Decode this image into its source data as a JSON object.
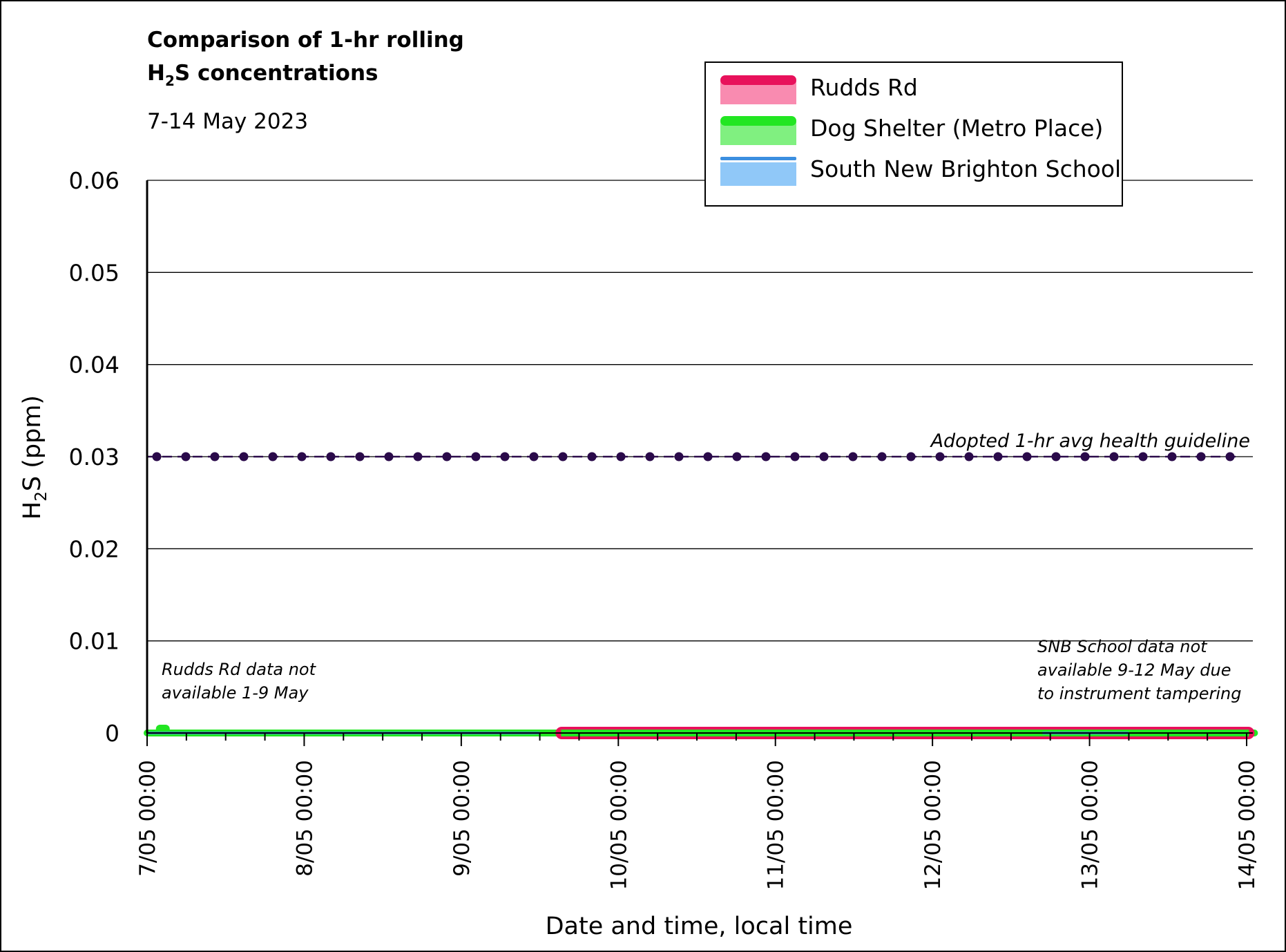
{
  "chart_data": {
    "type": "line",
    "title_line1": "Comparison of 1-hr rolling",
    "title_line2_main": "H",
    "title_line2_sub": "2",
    "title_line2_rest": "S concentrations",
    "subtitle": "7-14 May 2023",
    "ylabel_main": "H",
    "ylabel_sub": "2",
    "ylabel_rest": "S (ppm)",
    "xlabel": "Date and time, local time",
    "ylim": [
      0,
      0.06
    ],
    "xlim": [
      0,
      7
    ],
    "y_ticks": [
      {
        "value": 0,
        "label": "0"
      },
      {
        "value": 0.01,
        "label": "0.01"
      },
      {
        "value": 0.02,
        "label": "0.02"
      },
      {
        "value": 0.03,
        "label": "0.03"
      },
      {
        "value": 0.04,
        "label": "0.04"
      },
      {
        "value": 0.05,
        "label": "0.05"
      },
      {
        "value": 0.06,
        "label": "0.06"
      }
    ],
    "x_ticks": [
      {
        "value": 0,
        "label": "7/05 00:00"
      },
      {
        "value": 1,
        "label": "8/05 00:00"
      },
      {
        "value": 2,
        "label": "9/05 00:00"
      },
      {
        "value": 3,
        "label": "10/05 00:00"
      },
      {
        "value": 4,
        "label": "11/05 00:00"
      },
      {
        "value": 5,
        "label": "12/05 00:00"
      },
      {
        "value": 6,
        "label": "13/05 00:00"
      },
      {
        "value": 7,
        "label": "14/05 00:00"
      }
    ],
    "grid": true,
    "legend_position": "top-right",
    "series": [
      {
        "name": "Rudds Rd",
        "color": "#E8115B",
        "fill": "#F98BB0",
        "x_start": 2.6,
        "x_end": 7.05,
        "value": 0
      },
      {
        "name": "Dog Shelter (Metro Place)",
        "color": "#22E622",
        "fill": "#80F080",
        "x_start": 0,
        "x_end": 7.05,
        "value": 0,
        "blip_x": 0.1,
        "blip_value": 0.0003
      },
      {
        "name": "South New Brighton School",
        "color": "#3B8FE0",
        "fill": "#90C8F8",
        "segments": [
          [
            0,
            2.5
          ],
          [
            5.7,
            6.25
          ]
        ],
        "value": 0
      }
    ],
    "guideline": {
      "label": "Adopted 1-hr avg health guideline",
      "value": 0.03,
      "color": "#2A0A4A",
      "marker_count": 38
    },
    "annotations": [
      {
        "id": "rudds",
        "lines": [
          "Rudds Rd data not",
          "available 1-9 May"
        ]
      },
      {
        "id": "snb",
        "lines": [
          "SNB School data not",
          "available 9-12 May due",
          "to instrument tampering"
        ]
      }
    ]
  }
}
